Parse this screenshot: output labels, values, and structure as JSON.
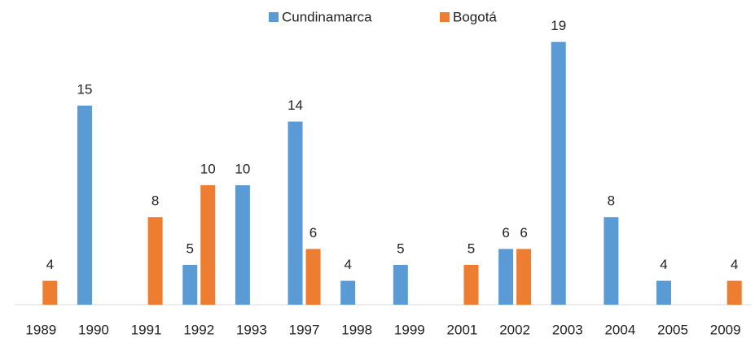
{
  "chart_data": {
    "type": "bar",
    "categories": [
      "1989",
      "1990",
      "1991",
      "1992",
      "1993",
      "1997",
      "1998",
      "1999",
      "2001",
      "2002",
      "2003",
      "2004",
      "2005",
      "2009"
    ],
    "series": [
      {
        "name": "Cundinamarca",
        "color": "#5b9bd5",
        "values": [
          null,
          15,
          null,
          5,
          10,
          14,
          4,
          5,
          null,
          6,
          19,
          8,
          4,
          null
        ]
      },
      {
        "name": "Bogotá",
        "color": "#ed7d31",
        "values": [
          4,
          null,
          8,
          10,
          null,
          6,
          null,
          null,
          5,
          6,
          null,
          null,
          null,
          4
        ]
      }
    ],
    "ylim": [
      2.5,
      20
    ]
  }
}
